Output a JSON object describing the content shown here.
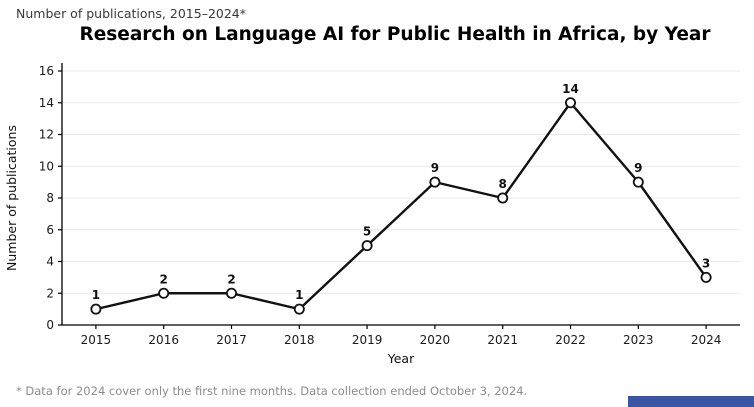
{
  "page": {
    "kicker": "Number of publications, 2015–2024*",
    "title": "Research on Language AI for Public Health in Africa, by Year",
    "footnote": "* Data for 2024 cover only the first nine months. Data collection ended October 3, 2024.",
    "brand_bar_color": "#3a55a4"
  },
  "chart_data": {
    "type": "line",
    "title": "Research on Language AI for Public Health in Africa, by Year",
    "categories": [
      "2015",
      "2016",
      "2017",
      "2018",
      "2019",
      "2020",
      "2021",
      "2022",
      "2023",
      "2024"
    ],
    "values": [
      1,
      2,
      2,
      1,
      5,
      9,
      8,
      14,
      9,
      3
    ],
    "xlabel": "Year",
    "ylabel": "Number of publications",
    "ylim": [
      0,
      16
    ],
    "yticks": [
      0,
      2,
      4,
      6,
      8,
      10,
      12,
      14,
      16
    ],
    "grid": true,
    "legend": "none",
    "line_color": "#111111",
    "marker_fill": "#ffffff",
    "grid_color": "#e9e9e9",
    "axis_color": "#000000",
    "tick_label_color": "#1a1a1a"
  }
}
